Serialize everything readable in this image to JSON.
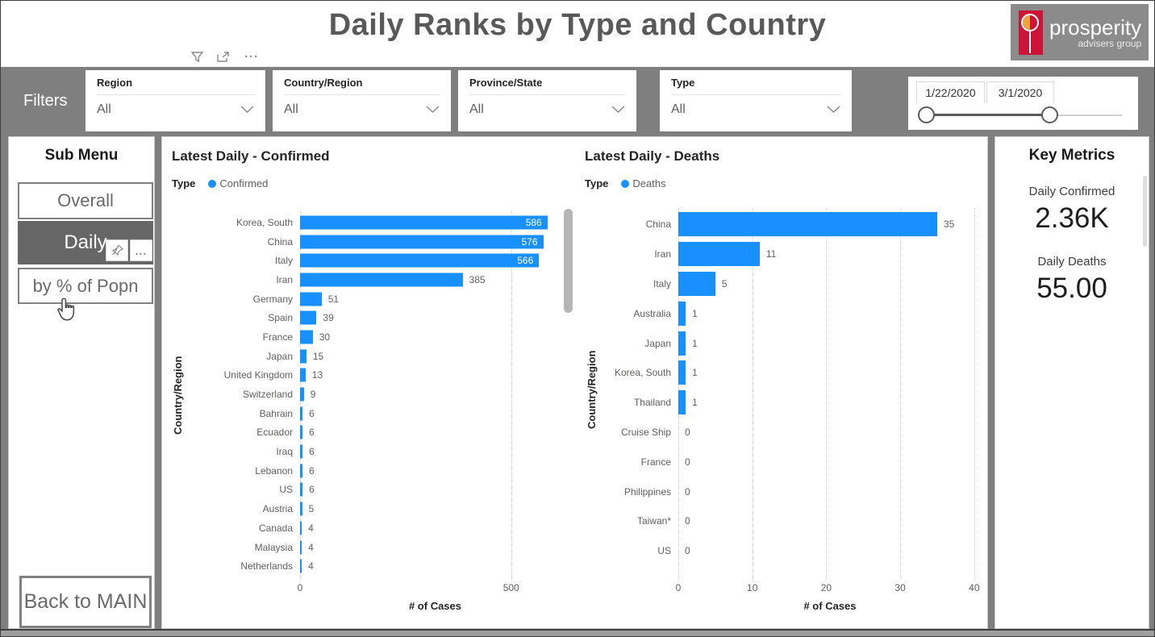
{
  "header": {
    "title": "Daily Ranks by Type and Country",
    "logo": {
      "name": "prosperity",
      "sub": "advisers group"
    }
  },
  "filters": {
    "label": "Filters",
    "dropdowns": [
      {
        "label": "Region",
        "value": "All"
      },
      {
        "label": "Country/Region",
        "value": "All"
      },
      {
        "label": "Province/State",
        "value": "All"
      },
      {
        "label": "Type",
        "value": "All"
      }
    ],
    "date_slider": {
      "start": "1/22/2020",
      "end": "3/1/2020"
    }
  },
  "submenu": {
    "title": "Sub Menu",
    "items": [
      {
        "label": "Overall",
        "selected": false
      },
      {
        "label": "Daily",
        "selected": true
      },
      {
        "label": "by % of Popn",
        "selected": false
      }
    ],
    "back_label": "Back to MAIN",
    "more_label": "..."
  },
  "key_metrics": {
    "title": "Key Metrics",
    "metrics": [
      {
        "label": "Daily Confirmed",
        "value": "2.36K"
      },
      {
        "label": "Daily Deaths",
        "value": "55.00"
      }
    ]
  },
  "chart_data": [
    {
      "type": "bar",
      "orientation": "horizontal",
      "title": "Latest Daily - Confirmed",
      "legend_title": "Type",
      "legend": [
        "Confirmed"
      ],
      "legend_position": "top-left",
      "categories": [
        "Korea, South",
        "China",
        "Italy",
        "Iran",
        "Germany",
        "Spain",
        "France",
        "Japan",
        "United Kingdom",
        "Switzerland",
        "Bahrain",
        "Ecuador",
        "Iraq",
        "Lebanon",
        "US",
        "Austria",
        "Canada",
        "Malaysia",
        "Netherlands"
      ],
      "values": [
        586,
        576,
        566,
        385,
        51,
        39,
        30,
        15,
        13,
        9,
        6,
        6,
        6,
        6,
        6,
        5,
        4,
        4,
        4
      ],
      "xlabel": "# of Cases",
      "ylabel": "Country/Region",
      "xlim": [
        0,
        640
      ],
      "xticks": [
        0,
        500
      ],
      "grid": "vertical-dotted",
      "bar_color": "#1890FF",
      "scrollbar": true
    },
    {
      "type": "bar",
      "orientation": "horizontal",
      "title": "Latest Daily - Deaths",
      "legend_title": "Type",
      "legend": [
        "Deaths"
      ],
      "legend_position": "top-left",
      "categories": [
        "China",
        "Iran",
        "Italy",
        "Australia",
        "Japan",
        "Korea, South",
        "Thailand",
        "Cruise Ship",
        "France",
        "Philippines",
        "Taiwan*",
        "US"
      ],
      "values": [
        35,
        11,
        5,
        1,
        1,
        1,
        1,
        0,
        0,
        0,
        0,
        0
      ],
      "xlabel": "# of Cases",
      "ylabel": "Country/Region",
      "xlim": [
        0,
        41
      ],
      "xticks": [
        0,
        10,
        20,
        30,
        40
      ],
      "grid": "vertical-dotted",
      "bar_color": "#1890FF",
      "scrollbar": false
    }
  ],
  "icons": {
    "toolbar": [
      "filter-icon",
      "focus-mode-icon",
      "more-options-icon"
    ],
    "dropdown": "chevron-down-icon",
    "daily_buttons": [
      "pin-icon",
      "more-options-icon"
    ],
    "cursor": "hand-cursor-icon"
  },
  "colors": {
    "bar_blue": "#1890FF",
    "filters_bar_gray": "#7F7F7F",
    "selected_button_gray": "#666666",
    "title_gray": "#595959",
    "logo_red": "#CF1237",
    "logo_orange": "#F2A33C"
  }
}
